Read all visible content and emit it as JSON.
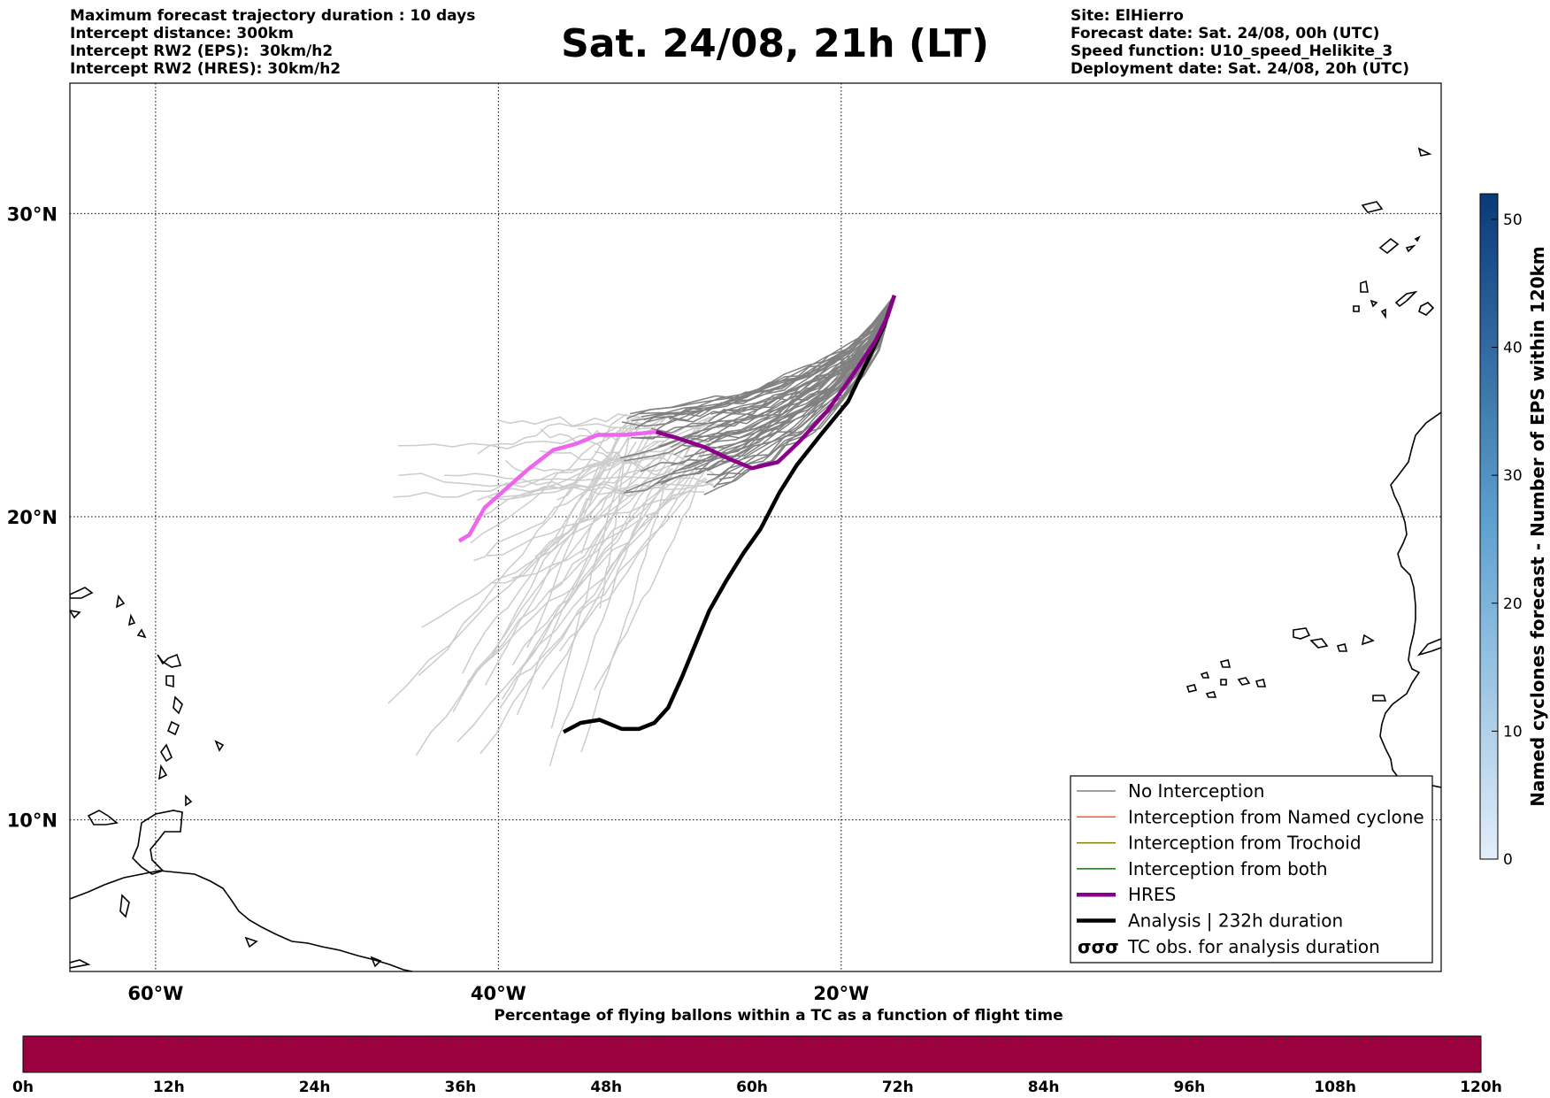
{
  "header": {
    "left": [
      "Maximum forecast trajectory duration : 10 days",
      "Intercept distance: 300km",
      "Intercept RW2 (EPS):  30km/h2",
      "Intercept RW2 (HRES): 30km/h2"
    ],
    "title": "Sat. 24/08, 21h (LT)",
    "right": [
      "Site: ElHierro",
      "Forecast date: Sat. 24/08, 00h (UTC)",
      "Speed function: U10_speed_Helikite_3",
      "Deployment date: Sat. 24/08, 20h (UTC)"
    ]
  },
  "map": {
    "lon_range": [
      -65,
      15
    ],
    "lat_range": [
      5,
      34.3
    ],
    "lon_ticks": [
      {
        "value": -60,
        "label": "60°W"
      },
      {
        "value": -40,
        "label": "40°W"
      },
      {
        "value": -20,
        "label": "20°W"
      }
    ],
    "lat_ticks": [
      {
        "value": 30,
        "label": "30°N"
      },
      {
        "value": 20,
        "label": "20°N"
      },
      {
        "value": 10,
        "label": "10°N"
      }
    ],
    "colors": {
      "no_interception": "#808080",
      "named_cyclone": "#ff5a1f",
      "trochoid": "#808000",
      "both": "#008000",
      "hres": "#8b008b",
      "hres_late": "#ee66ee",
      "analysis": "#000000",
      "eps_late": "#cccccc"
    },
    "hres_track": [
      [
        -16.9,
        27.3
      ],
      [
        -17.3,
        26.6
      ],
      [
        -18.0,
        25.8
      ],
      [
        -19.3,
        24.7
      ],
      [
        -20.8,
        23.5
      ],
      [
        -22.4,
        22.5
      ],
      [
        -23.7,
        21.8
      ],
      [
        -25.2,
        21.6
      ],
      [
        -26.5,
        21.9
      ],
      [
        -28.0,
        22.3
      ],
      [
        -29.6,
        22.6
      ],
      [
        -30.8,
        22.8
      ],
      [
        -32.6,
        22.7
      ],
      [
        -34.2,
        22.7
      ],
      [
        -35.5,
        22.4
      ],
      [
        -36.8,
        22.2
      ],
      [
        -38.2,
        21.6
      ],
      [
        -39.6,
        20.9
      ],
      [
        -40.8,
        20.3
      ],
      [
        -41.7,
        19.4
      ],
      [
        -42.3,
        19.2
      ]
    ],
    "analysis_track": [
      [
        -16.9,
        27.3
      ],
      [
        -17.5,
        26.3
      ],
      [
        -18.5,
        25.1
      ],
      [
        -19.6,
        23.8
      ],
      [
        -21.2,
        22.7
      ],
      [
        -22.6,
        21.7
      ],
      [
        -23.6,
        20.8
      ],
      [
        -24.7,
        19.6
      ],
      [
        -25.7,
        18.8
      ],
      [
        -26.7,
        17.9
      ],
      [
        -27.7,
        16.9
      ],
      [
        -28.5,
        15.8
      ],
      [
        -29.3,
        14.7
      ],
      [
        -30.1,
        13.7
      ],
      [
        -30.9,
        13.2
      ],
      [
        -31.8,
        13.0
      ],
      [
        -32.8,
        13.0
      ],
      [
        -34.1,
        13.3
      ],
      [
        -35.2,
        13.2
      ],
      [
        -36.2,
        12.9
      ]
    ],
    "legend": [
      {
        "label": "No Interception",
        "style": "thin",
        "color_key": "no_interception"
      },
      {
        "label": "Interception from Named cyclone",
        "style": "thin",
        "color_key": "named_cyclone"
      },
      {
        "label": "Interception from Trochoid",
        "style": "thin",
        "color_key": "trochoid"
      },
      {
        "label": "Interception from both",
        "style": "thin",
        "color_key": "both"
      },
      {
        "label": "HRES",
        "style": "thick",
        "color_key": "hres"
      },
      {
        "label": "Analysis | 232h duration",
        "style": "thick",
        "color_key": "analysis"
      },
      {
        "label": "TC obs. for analysis duration",
        "style": "symbol",
        "symbol": "σσσ"
      }
    ]
  },
  "colorbar_right": {
    "label": "Named cyclones forecast - Number of EPS within 120km",
    "range": [
      0,
      52
    ],
    "ticks": [
      "0",
      "10",
      "20",
      "30",
      "40",
      "50"
    ],
    "color_low": "#e3eefa",
    "color_high": "#0a3a78"
  },
  "colorbar_bottom": {
    "title": "Percentage of flying ballons within a TC as a function of flight time",
    "ticks": [
      "0h",
      "12h",
      "24h",
      "36h",
      "48h",
      "60h",
      "72h",
      "84h",
      "96h",
      "108h",
      "120h"
    ],
    "color": "#9b003f"
  }
}
